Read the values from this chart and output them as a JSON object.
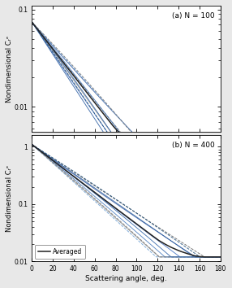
{
  "title_a": "(a) N = 100",
  "title_b": "(b) N = 400",
  "xlabel": "Scattering angle, deg.",
  "ylabel": "Nondimensional Cᵣᵉ",
  "xlim": [
    0,
    180
  ],
  "ylim_a": [
    0.0055,
    0.11
  ],
  "ylim_b": [
    0.01,
    1.6
  ],
  "yticks_a": [
    0.01,
    0.1
  ],
  "yticks_b": [
    0.01,
    0.1,
    1.0
  ],
  "xticks": [
    0,
    20,
    40,
    60,
    80,
    100,
    120,
    140,
    160,
    180
  ],
  "averaged_color": "#222222",
  "n_individual_lines": 10,
  "legend_label": "Averaged",
  "background_color": "#e8e8e8",
  "panel_bg": "#ffffff",
  "blue_shades": [
    "#3a5fa0",
    "#4472c4",
    "#5b8dd9",
    "#2e5fa3",
    "#6a9fd4",
    "#8ab4e0",
    "#1f4e79",
    "#4a7cbf",
    "#7aaad0",
    "#3366aa"
  ],
  "gray_shades": [
    "#787878",
    "#909090",
    "#606060",
    "#a0a0a0"
  ]
}
